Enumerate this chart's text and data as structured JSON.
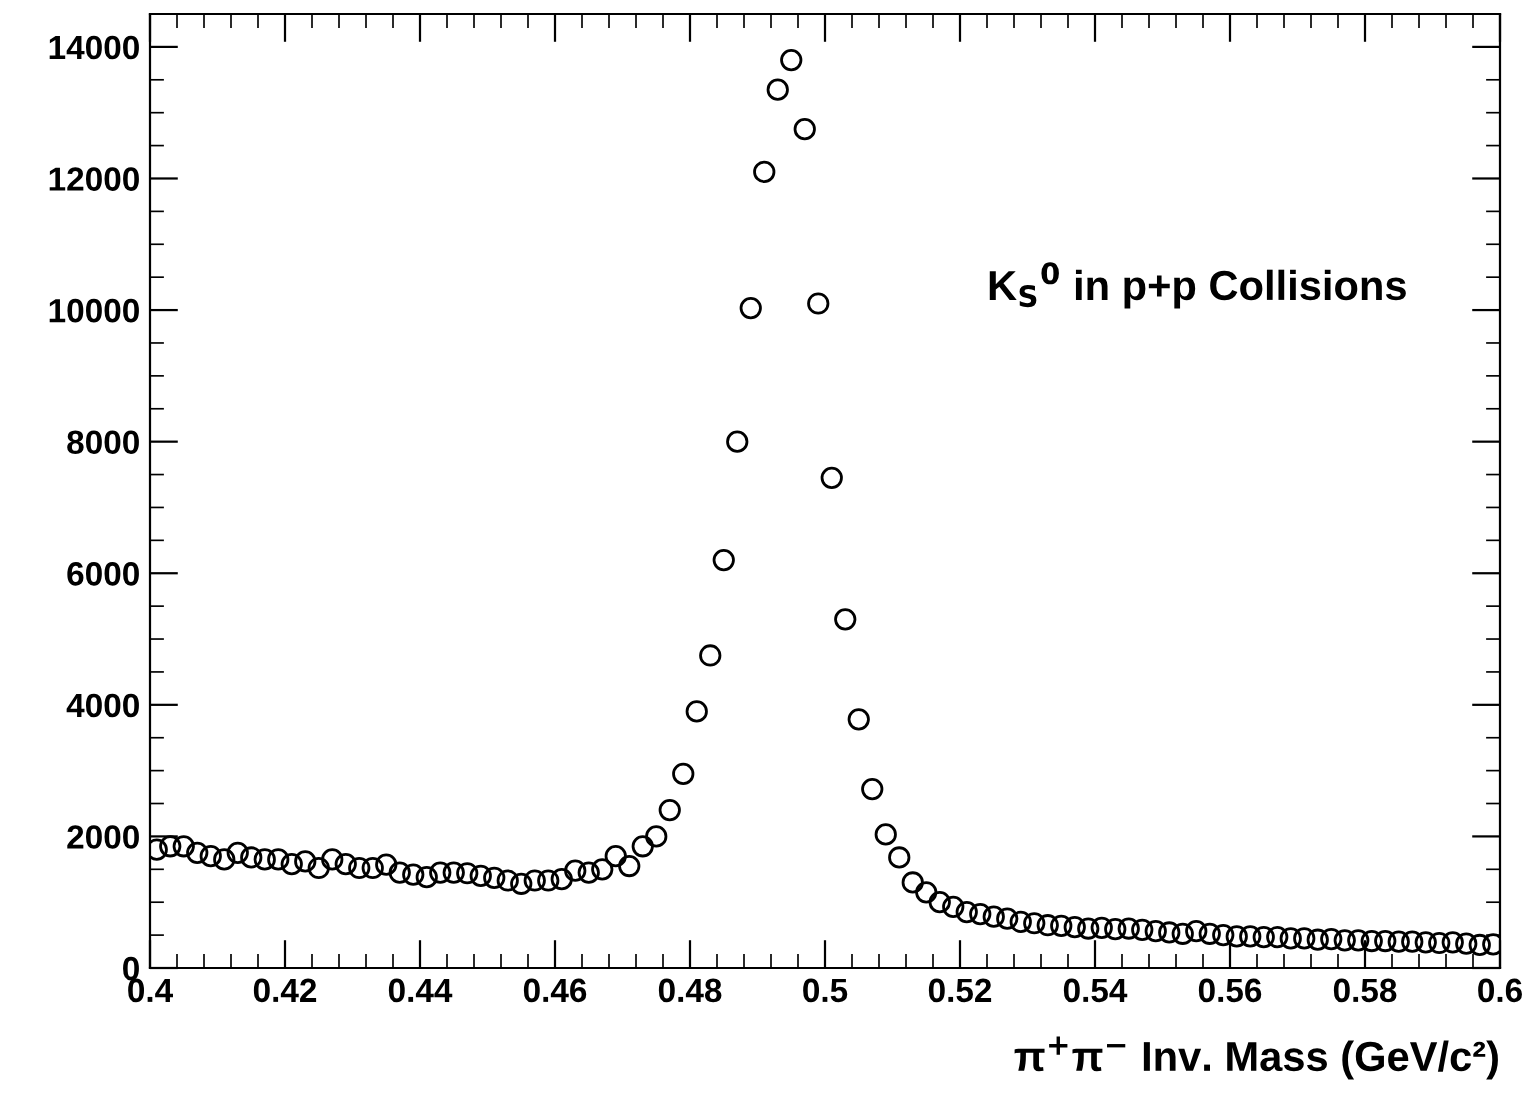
{
  "chart_data": {
    "type": "scatter",
    "xlabel": "π$^{+}$π$^{−}$ Inv. Mass (GeV/c²)",
    "annotations": [
      "K$_{S}$$^{0}$ in p+p Collisions"
    ],
    "x": [
      0.401,
      0.403,
      0.405,
      0.407,
      0.409,
      0.411,
      0.413,
      0.415,
      0.417,
      0.419,
      0.421,
      0.423,
      0.425,
      0.427,
      0.429,
      0.431,
      0.433,
      0.435,
      0.437,
      0.439,
      0.441,
      0.443,
      0.445,
      0.447,
      0.449,
      0.451,
      0.453,
      0.455,
      0.457,
      0.459,
      0.461,
      0.463,
      0.465,
      0.467,
      0.469,
      0.471,
      0.473,
      0.475,
      0.477,
      0.479,
      0.481,
      0.483,
      0.485,
      0.487,
      0.489,
      0.491,
      0.493,
      0.495,
      0.497,
      0.499,
      0.501,
      0.503,
      0.505,
      0.507,
      0.509,
      0.511,
      0.513,
      0.515,
      0.517,
      0.519,
      0.521,
      0.523,
      0.525,
      0.527,
      0.529,
      0.531,
      0.533,
      0.535,
      0.537,
      0.539,
      0.541,
      0.543,
      0.545,
      0.547,
      0.549,
      0.551,
      0.553,
      0.555,
      0.557,
      0.559,
      0.561,
      0.563,
      0.565,
      0.567,
      0.569,
      0.571,
      0.573,
      0.575,
      0.577,
      0.579,
      0.581,
      0.583,
      0.585,
      0.587,
      0.589,
      0.591,
      0.593,
      0.595,
      0.597,
      0.599
    ],
    "series": [
      {
        "color": "#000000",
        "values": [
          1800,
          1850,
          1850,
          1750,
          1700,
          1650,
          1750,
          1680,
          1650,
          1650,
          1580,
          1620,
          1520,
          1650,
          1580,
          1520,
          1520,
          1570,
          1450,
          1420,
          1380,
          1450,
          1450,
          1440,
          1400,
          1370,
          1330,
          1280,
          1330,
          1330,
          1350,
          1480,
          1450,
          1500,
          1700,
          1550,
          1850,
          2000,
          2400,
          2950,
          3900,
          4750,
          6200,
          8000,
          10030,
          12100,
          13350,
          13800,
          12750,
          10100,
          7450,
          5300,
          3780,
          2720,
          2030,
          1680,
          1300,
          1150,
          1000,
          930,
          850,
          820,
          780,
          750,
          700,
          680,
          650,
          640,
          620,
          600,
          610,
          590,
          600,
          580,
          560,
          540,
          520,
          560,
          520,
          500,
          480,
          480,
          470,
          470,
          450,
          450,
          430,
          440,
          420,
          420,
          410,
          410,
          400,
          400,
          390,
          380,
          390,
          370,
          350,
          360
        ]
      }
    ],
    "xlim": [
      0.4,
      0.6
    ],
    "ylim": [
      0,
      14500
    ],
    "xticks": [
      {
        "value": 0.4,
        "label": "0.4"
      },
      0.42,
      0.44,
      0.46,
      0.48,
      {
        "value": 0.5,
        "label": "0.5"
      },
      0.52,
      0.54,
      0.56,
      0.58,
      {
        "value": 0.6,
        "label": "0.6"
      }
    ],
    "yticks": [
      0,
      2000,
      4000,
      6000,
      8000,
      10000,
      12000,
      14000
    ],
    "marker": "circle",
    "grid": false
  }
}
